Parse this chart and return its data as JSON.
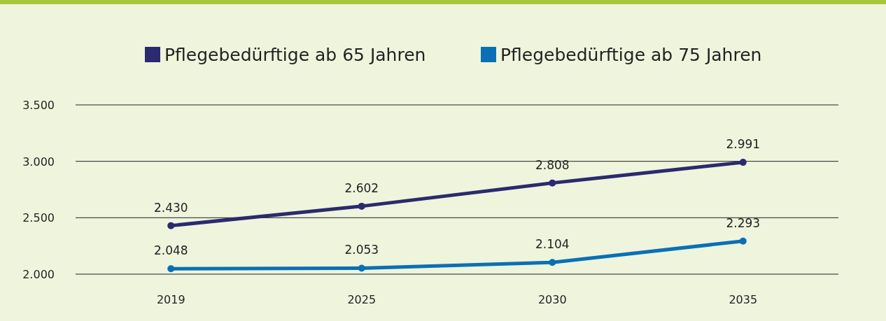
{
  "chart_data": {
    "type": "line",
    "categories": [
      "2019",
      "2025",
      "2030",
      "2035"
    ],
    "series": [
      {
        "name": "Pflegebedürftige ab 65 Jahren",
        "color": "#2b2a6e",
        "values": [
          2430,
          2602,
          2808,
          2991
        ],
        "value_labels": [
          "2.430",
          "2.602",
          "2.808",
          "2.991"
        ]
      },
      {
        "name": "Pflegebedürftige ab 75 Jahren",
        "color": "#0a70b6",
        "values": [
          2048,
          2053,
          2104,
          2293
        ],
        "value_labels": [
          "2.048",
          "2.053",
          "2.104",
          "2.293"
        ]
      }
    ],
    "ylim": [
      2000,
      3500
    ],
    "yticks": [
      {
        "value": 2000,
        "label": "2.000"
      },
      {
        "value": 2500,
        "label": "2.500"
      },
      {
        "value": 3000,
        "label": "3.000"
      },
      {
        "value": 3500,
        "label": "3.500"
      }
    ],
    "grid": "y",
    "legend": "top",
    "marker": "circle",
    "line_style": "solid"
  }
}
